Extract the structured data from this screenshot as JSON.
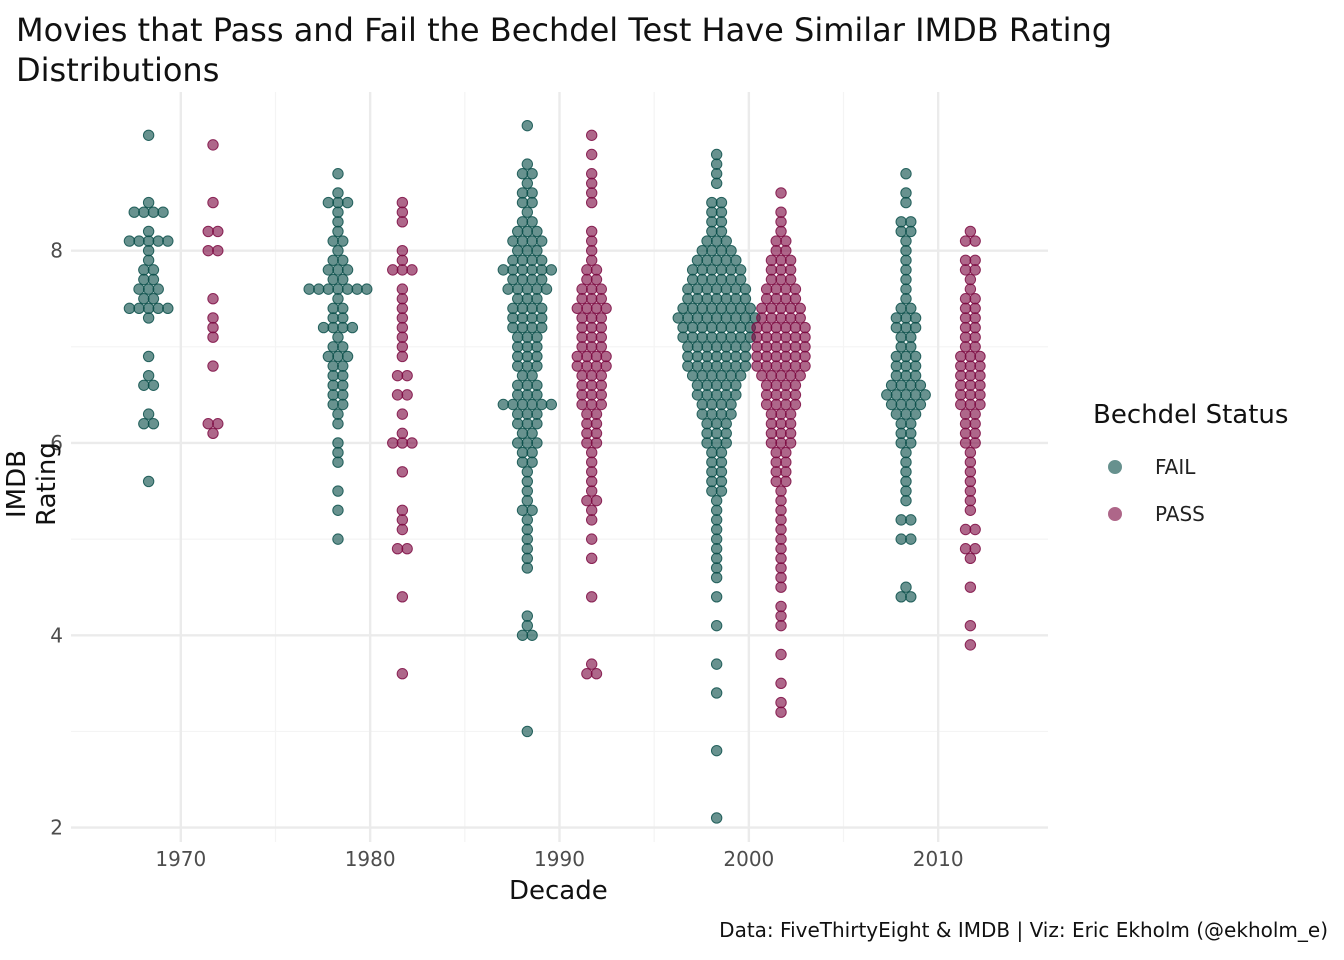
{
  "chart_data": {
    "type": "scatter",
    "subtype": "beeswarm",
    "title": "Movies that Pass and Fail the Bechdel Test Have Similar IMDB Rating Distributions",
    "xlabel": "Decade",
    "ylabel": "IMDB Rating",
    "caption": "Data: FiveThirtyEight & IMDB | Viz: Eric Ekholm (@ekholm_e)",
    "legend_title": "Bechdel Status",
    "legend_position": "right",
    "x_ticks": [
      1970,
      1980,
      1990,
      2000,
      2010
    ],
    "y_ticks": [
      2,
      4,
      6,
      8
    ],
    "xlim": [
      1964.2,
      2015.8
    ],
    "ylim": [
      1.85,
      9.65
    ],
    "series": [
      {
        "name": "FAIL",
        "color": "#0b4f4a",
        "groups": [
          {
            "decade": 1970,
            "x_center": 1968.3,
            "values": [
              9.2,
              8.5,
              8.4,
              8.4,
              8.4,
              8.4,
              8.2,
              8.1,
              8.1,
              8.1,
              8.1,
              8.1,
              8.0,
              7.9,
              7.8,
              7.8,
              7.7,
              7.7,
              7.6,
              7.6,
              7.6,
              7.5,
              7.5,
              7.4,
              7.4,
              7.4,
              7.4,
              7.4,
              7.3,
              6.9,
              6.7,
              6.6,
              6.6,
              6.3,
              6.2,
              6.2,
              5.6
            ]
          },
          {
            "decade": 1980,
            "x_center": 1978.3,
            "values": [
              8.8,
              8.6,
              8.5,
              8.5,
              8.5,
              8.4,
              8.3,
              8.2,
              8.1,
              8.1,
              8.0,
              7.9,
              7.9,
              7.8,
              7.8,
              7.8,
              7.7,
              7.7,
              7.6,
              7.6,
              7.6,
              7.6,
              7.6,
              7.6,
              7.6,
              7.5,
              7.4,
              7.4,
              7.3,
              7.3,
              7.2,
              7.2,
              7.2,
              7.2,
              7.1,
              7.0,
              7.0,
              6.9,
              6.9,
              6.9,
              6.8,
              6.8,
              6.7,
              6.7,
              6.6,
              6.6,
              6.5,
              6.5,
              6.4,
              6.4,
              6.3,
              6.2,
              6.0,
              5.9,
              5.8,
              5.5,
              5.3,
              5.0
            ]
          },
          {
            "decade": 1990,
            "x_center": 1988.3,
            "values": [
              9.3,
              8.9,
              8.8,
              8.8,
              8.7,
              8.6,
              8.6,
              8.5,
              8.5,
              8.4,
              8.3,
              8.3,
              8.2,
              8.2,
              8.2,
              8.1,
              8.1,
              8.1,
              8.1,
              8.0,
              8.0,
              8.0,
              7.9,
              7.9,
              7.9,
              7.9,
              7.8,
              7.8,
              7.8,
              7.8,
              7.8,
              7.8,
              7.7,
              7.7,
              7.7,
              7.7,
              7.6,
              7.6,
              7.6,
              7.6,
              7.6,
              7.5,
              7.5,
              7.5,
              7.4,
              7.4,
              7.4,
              7.4,
              7.3,
              7.3,
              7.3,
              7.3,
              7.2,
              7.2,
              7.2,
              7.2,
              7.1,
              7.1,
              7.1,
              7.0,
              7.0,
              7.0,
              6.9,
              6.9,
              6.9,
              6.8,
              6.8,
              6.8,
              6.7,
              6.7,
              6.6,
              6.6,
              6.6,
              6.5,
              6.5,
              6.5,
              6.4,
              6.4,
              6.4,
              6.4,
              6.4,
              6.4,
              6.3,
              6.3,
              6.3,
              6.2,
              6.2,
              6.2,
              6.1,
              6.1,
              6.0,
              6.0,
              6.0,
              5.9,
              5.9,
              5.8,
              5.8,
              5.7,
              5.6,
              5.5,
              5.4,
              5.3,
              5.3,
              5.2,
              5.1,
              5.0,
              4.9,
              4.8,
              4.7,
              4.2,
              4.1,
              4.0,
              4.0,
              3.0
            ]
          },
          {
            "decade": 2000,
            "x_center": 1998.3,
            "values": [
              9.0,
              8.9,
              8.8,
              8.7,
              8.5,
              8.5,
              8.4,
              8.4,
              8.3,
              8.3,
              8.2,
              8.2,
              8.1,
              8.1,
              8.1,
              8.0,
              8.0,
              8.0,
              8.0,
              7.9,
              7.9,
              7.9,
              7.9,
              7.9,
              7.8,
              7.8,
              7.8,
              7.8,
              7.8,
              7.8,
              7.7,
              7.7,
              7.7,
              7.7,
              7.7,
              7.7,
              7.6,
              7.6,
              7.6,
              7.6,
              7.6,
              7.6,
              7.6,
              7.5,
              7.5,
              7.5,
              7.5,
              7.5,
              7.5,
              7.5,
              7.4,
              7.4,
              7.4,
              7.4,
              7.4,
              7.4,
              7.4,
              7.4,
              7.3,
              7.3,
              7.3,
              7.3,
              7.3,
              7.3,
              7.3,
              7.3,
              7.3,
              7.2,
              7.2,
              7.2,
              7.2,
              7.2,
              7.2,
              7.2,
              7.2,
              7.1,
              7.1,
              7.1,
              7.1,
              7.1,
              7.1,
              7.1,
              7.1,
              7.0,
              7.0,
              7.0,
              7.0,
              7.0,
              7.0,
              7.0,
              6.9,
              6.9,
              6.9,
              6.9,
              6.9,
              6.9,
              6.9,
              6.8,
              6.8,
              6.8,
              6.8,
              6.8,
              6.8,
              6.8,
              6.7,
              6.7,
              6.7,
              6.7,
              6.7,
              6.7,
              6.6,
              6.6,
              6.6,
              6.6,
              6.6,
              6.5,
              6.5,
              6.5,
              6.5,
              6.5,
              6.4,
              6.4,
              6.4,
              6.4,
              6.3,
              6.3,
              6.3,
              6.3,
              6.2,
              6.2,
              6.2,
              6.1,
              6.1,
              6.1,
              6.0,
              6.0,
              6.0,
              5.9,
              5.9,
              5.8,
              5.8,
              5.7,
              5.7,
              5.6,
              5.6,
              5.5,
              5.5,
              5.4,
              5.3,
              5.2,
              5.1,
              5.0,
              4.9,
              4.8,
              4.7,
              4.6,
              4.4,
              4.1,
              3.7,
              3.4,
              2.8,
              2.1
            ]
          },
          {
            "decade": 2010,
            "x_center": 2008.3,
            "values": [
              8.8,
              8.6,
              8.5,
              8.3,
              8.3,
              8.2,
              8.2,
              8.1,
              8.0,
              7.9,
              7.8,
              7.7,
              7.6,
              7.5,
              7.4,
              7.4,
              7.3,
              7.3,
              7.3,
              7.2,
              7.2,
              7.2,
              7.1,
              7.1,
              7.0,
              7.0,
              6.9,
              6.9,
              6.9,
              6.8,
              6.8,
              6.8,
              6.7,
              6.7,
              6.7,
              6.6,
              6.6,
              6.6,
              6.6,
              6.5,
              6.5,
              6.5,
              6.5,
              6.5,
              6.4,
              6.4,
              6.4,
              6.4,
              6.3,
              6.3,
              6.3,
              6.2,
              6.2,
              6.1,
              6.1,
              6.0,
              6.0,
              5.9,
              5.8,
              5.7,
              5.6,
              5.5,
              5.4,
              5.2,
              5.2,
              5.0,
              5.0,
              4.5,
              4.4,
              4.4
            ]
          }
        ]
      },
      {
        "name": "PASS",
        "color": "#7d0a42",
        "groups": [
          {
            "decade": 1970,
            "x_center": 1971.7,
            "values": [
              9.1,
              8.5,
              8.2,
              8.2,
              8.0,
              8.0,
              7.5,
              7.3,
              7.2,
              7.1,
              6.8,
              6.2,
              6.2,
              6.1
            ]
          },
          {
            "decade": 1980,
            "x_center": 1981.7,
            "values": [
              8.5,
              8.4,
              8.3,
              8.0,
              7.9,
              7.8,
              7.8,
              7.8,
              7.6,
              7.5,
              7.4,
              7.3,
              7.2,
              7.1,
              7.0,
              6.9,
              6.7,
              6.7,
              6.5,
              6.5,
              6.3,
              6.1,
              6.0,
              6.0,
              6.0,
              5.7,
              5.3,
              5.2,
              5.1,
              4.9,
              4.9,
              4.4,
              3.6
            ]
          },
          {
            "decade": 1990,
            "x_center": 1991.7,
            "values": [
              9.2,
              9.0,
              8.8,
              8.7,
              8.6,
              8.5,
              8.2,
              8.1,
              8.0,
              7.9,
              7.8,
              7.8,
              7.7,
              7.7,
              7.6,
              7.6,
              7.6,
              7.5,
              7.5,
              7.5,
              7.4,
              7.4,
              7.4,
              7.4,
              7.3,
              7.3,
              7.3,
              7.2,
              7.2,
              7.2,
              7.1,
              7.1,
              7.1,
              7.0,
              7.0,
              7.0,
              6.9,
              6.9,
              6.9,
              6.9,
              6.8,
              6.8,
              6.8,
              6.8,
              6.7,
              6.7,
              6.7,
              6.6,
              6.6,
              6.6,
              6.5,
              6.5,
              6.5,
              6.4,
              6.4,
              6.4,
              6.3,
              6.3,
              6.2,
              6.2,
              6.1,
              6.1,
              6.0,
              6.0,
              5.9,
              5.8,
              5.7,
              5.6,
              5.5,
              5.4,
              5.4,
              5.3,
              5.2,
              5.0,
              4.8,
              4.4,
              3.7,
              3.6,
              3.6
            ]
          },
          {
            "decade": 2000,
            "x_center": 2001.7,
            "values": [
              8.6,
              8.4,
              8.3,
              8.2,
              8.1,
              8.1,
              8.0,
              8.0,
              7.9,
              7.9,
              7.9,
              7.8,
              7.8,
              7.8,
              7.7,
              7.7,
              7.7,
              7.6,
              7.6,
              7.6,
              7.6,
              7.5,
              7.5,
              7.5,
              7.5,
              7.4,
              7.4,
              7.4,
              7.4,
              7.4,
              7.3,
              7.3,
              7.3,
              7.3,
              7.3,
              7.2,
              7.2,
              7.2,
              7.2,
              7.2,
              7.2,
              7.1,
              7.1,
              7.1,
              7.1,
              7.1,
              7.1,
              7.0,
              7.0,
              7.0,
              7.0,
              7.0,
              7.0,
              6.9,
              6.9,
              6.9,
              6.9,
              6.9,
              6.9,
              6.8,
              6.8,
              6.8,
              6.8,
              6.8,
              6.8,
              6.7,
              6.7,
              6.7,
              6.7,
              6.7,
              6.6,
              6.6,
              6.6,
              6.6,
              6.5,
              6.5,
              6.5,
              6.5,
              6.4,
              6.4,
              6.4,
              6.4,
              6.3,
              6.3,
              6.3,
              6.2,
              6.2,
              6.2,
              6.1,
              6.1,
              6.1,
              6.0,
              6.0,
              6.0,
              5.9,
              5.9,
              5.8,
              5.8,
              5.7,
              5.7,
              5.6,
              5.6,
              5.5,
              5.4,
              5.3,
              5.2,
              5.1,
              5.0,
              4.9,
              4.8,
              4.7,
              4.6,
              4.5,
              4.3,
              4.2,
              4.1,
              3.8,
              3.5,
              3.3,
              3.2
            ]
          },
          {
            "decade": 2010,
            "x_center": 2011.7,
            "values": [
              8.2,
              8.1,
              8.1,
              7.9,
              7.9,
              7.8,
              7.8,
              7.7,
              7.6,
              7.5,
              7.5,
              7.4,
              7.4,
              7.3,
              7.3,
              7.2,
              7.2,
              7.1,
              7.1,
              7.0,
              7.0,
              6.9,
              6.9,
              6.9,
              6.8,
              6.8,
              6.8,
              6.7,
              6.7,
              6.7,
              6.6,
              6.6,
              6.6,
              6.5,
              6.5,
              6.5,
              6.4,
              6.4,
              6.4,
              6.3,
              6.3,
              6.2,
              6.2,
              6.1,
              6.1,
              6.0,
              6.0,
              5.9,
              5.8,
              5.7,
              5.6,
              5.5,
              5.4,
              5.3,
              5.1,
              5.1,
              4.9,
              4.9,
              4.8,
              4.5,
              4.1,
              3.9
            ]
          }
        ]
      }
    ]
  }
}
